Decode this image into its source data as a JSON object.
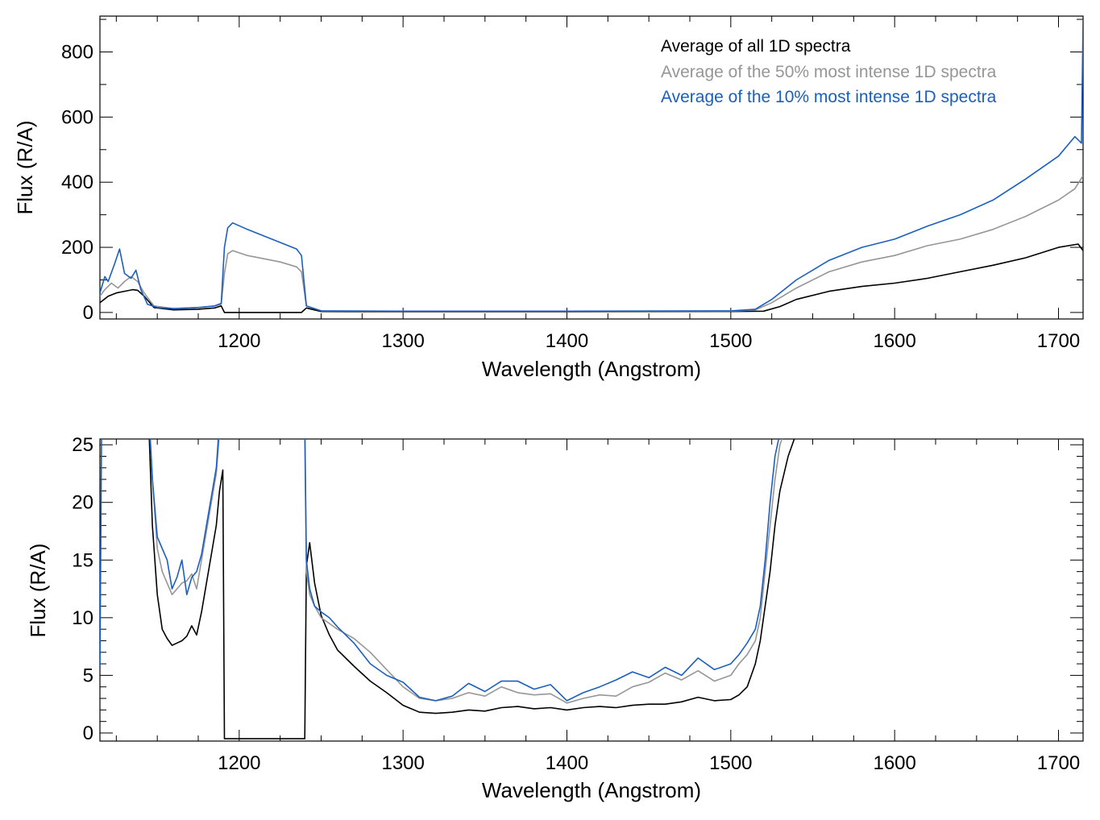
{
  "colors": {
    "all": "#000000",
    "top50": "#969696",
    "top10": "#1a5fbf"
  },
  "legend": [
    {
      "key": "all",
      "label": "Average of all 1D spectra"
    },
    {
      "key": "top50",
      "label": "Average of the 50% most intense 1D spectra"
    },
    {
      "key": "top10",
      "label": "Average of the 10% most intense 1D spectra"
    }
  ],
  "chart_data": [
    {
      "type": "line",
      "xlabel": "Wavelength (Angstrom)",
      "ylabel": "Flux (R/A)",
      "xlim": [
        1115,
        1715
      ],
      "ylim": [
        -20,
        910
      ],
      "xticks": [
        1200,
        1300,
        1400,
        1500,
        1600,
        1700
      ],
      "yticks": [
        0,
        200,
        400,
        600,
        800
      ],
      "legend_position": "top-right",
      "series": [
        {
          "key": "all",
          "name": "Average of all 1D spectra",
          "x": [
            1115,
            1120,
            1125,
            1130,
            1135,
            1138,
            1142,
            1148,
            1160,
            1175,
            1185,
            1189,
            1191,
            1196,
            1210,
            1225,
            1238,
            1241,
            1250,
            1300,
            1400,
            1500,
            1520,
            1530,
            1540,
            1560,
            1580,
            1600,
            1620,
            1640,
            1660,
            1680,
            1700,
            1712,
            1715
          ],
          "y": [
            30,
            50,
            60,
            65,
            70,
            68,
            50,
            15,
            8,
            10,
            14,
            20,
            0,
            0,
            0,
            0,
            0,
            14,
            3,
            2,
            2,
            3,
            4,
            18,
            40,
            65,
            80,
            90,
            105,
            125,
            145,
            168,
            200,
            210,
            190
          ]
        },
        {
          "key": "top50",
          "name": "Average of the 50% most intense 1D spectra",
          "x": [
            1115,
            1118,
            1122,
            1126,
            1130,
            1134,
            1138,
            1142,
            1148,
            1160,
            1175,
            1185,
            1189,
            1191,
            1193,
            1196,
            1205,
            1215,
            1225,
            1235,
            1238,
            1241,
            1250,
            1300,
            1400,
            1500,
            1515,
            1525,
            1540,
            1560,
            1580,
            1600,
            1620,
            1640,
            1660,
            1680,
            1700,
            1710,
            1715
          ],
          "y": [
            50,
            70,
            90,
            75,
            95,
            110,
            95,
            60,
            20,
            12,
            15,
            20,
            25,
            120,
            180,
            190,
            175,
            165,
            155,
            140,
            125,
            20,
            5,
            3,
            3,
            4,
            8,
            30,
            75,
            125,
            155,
            175,
            205,
            225,
            255,
            295,
            345,
            380,
            420
          ]
        },
        {
          "key": "top10",
          "name": "Average of the 10% most intense 1D spectra",
          "x": [
            1115,
            1118,
            1120,
            1124,
            1127,
            1130,
            1134,
            1137,
            1140,
            1144,
            1150,
            1160,
            1175,
            1185,
            1189,
            1191,
            1193,
            1196,
            1205,
            1215,
            1225,
            1235,
            1238,
            1241,
            1250,
            1300,
            1400,
            1500,
            1515,
            1525,
            1540,
            1560,
            1580,
            1600,
            1620,
            1640,
            1660,
            1680,
            1700,
            1710,
            1714,
            1715
          ],
          "y": [
            60,
            110,
            95,
            150,
            195,
            120,
            105,
            130,
            70,
            25,
            15,
            12,
            15,
            20,
            28,
            200,
            260,
            275,
            255,
            235,
            215,
            195,
            175,
            20,
            5,
            4,
            4,
            5,
            10,
            40,
            100,
            160,
            200,
            225,
            265,
            300,
            345,
            410,
            480,
            540,
            520,
            900
          ]
        }
      ]
    },
    {
      "type": "line",
      "xlabel": "Wavelength (Angstrom)",
      "ylabel": "Flux (R/A)",
      "xlim": [
        1115,
        1715
      ],
      "ylim": [
        -0.7,
        25.5
      ],
      "xticks": [
        1200,
        1300,
        1400,
        1500,
        1600,
        1700
      ],
      "yticks": [
        0,
        5,
        10,
        15,
        20,
        25
      ],
      "series": [
        {
          "key": "all",
          "name": "Average of all 1D spectra",
          "x": [
            1144,
            1147,
            1150,
            1153,
            1156,
            1159,
            1162,
            1165,
            1168,
            1171,
            1174,
            1177,
            1180,
            1183,
            1186,
            1188,
            1190,
            1191,
            1240,
            1241,
            1243,
            1246,
            1250,
            1255,
            1260,
            1270,
            1280,
            1290,
            1300,
            1310,
            1320,
            1330,
            1340,
            1350,
            1360,
            1370,
            1380,
            1390,
            1400,
            1410,
            1420,
            1430,
            1440,
            1450,
            1460,
            1470,
            1480,
            1490,
            1500,
            1505,
            1510,
            1515,
            1518,
            1521,
            1524,
            1527,
            1530,
            1535,
            1540
          ],
          "y": [
            30,
            18,
            12,
            9,
            8.2,
            7.6,
            7.8,
            8,
            8.4,
            9.3,
            8.5,
            10.5,
            13,
            15.5,
            18,
            21,
            22.8,
            -0.5,
            -0.5,
            14.5,
            16.5,
            13,
            10.2,
            8.5,
            7.2,
            5.8,
            4.5,
            3.5,
            2.4,
            1.8,
            1.7,
            1.8,
            2,
            1.9,
            2.2,
            2.3,
            2.1,
            2.2,
            2,
            2.2,
            2.3,
            2.2,
            2.4,
            2.5,
            2.5,
            2.7,
            3.1,
            2.8,
            2.9,
            3.3,
            4,
            6,
            8,
            11,
            14,
            18,
            21,
            24,
            26
          ]
        },
        {
          "key": "top50",
          "name": "Average of the 50% most intense 1D spectra",
          "x": [
            1144,
            1147,
            1150,
            1153,
            1156,
            1159,
            1162,
            1165,
            1168,
            1171,
            1174,
            1177,
            1180,
            1183,
            1186,
            1188,
            1240,
            1241,
            1243,
            1246,
            1250,
            1255,
            1260,
            1270,
            1280,
            1290,
            1300,
            1310,
            1320,
            1330,
            1340,
            1350,
            1360,
            1370,
            1380,
            1390,
            1400,
            1410,
            1420,
            1430,
            1440,
            1450,
            1460,
            1470,
            1480,
            1490,
            1500,
            1505,
            1510,
            1515,
            1518,
            1521,
            1524,
            1527,
            1530,
            1535
          ],
          "y": [
            30,
            22,
            16,
            14,
            13,
            12,
            12.5,
            13,
            13.2,
            13.8,
            12.5,
            15,
            17.5,
            20,
            22.5,
            26,
            26,
            14,
            12,
            11,
            10,
            9.5,
            9,
            8.2,
            7,
            5.5,
            4,
            3,
            2.8,
            3,
            3.5,
            3.2,
            4,
            3.5,
            3.3,
            3.4,
            2.6,
            3,
            3.3,
            3.2,
            4,
            4.4,
            5.2,
            4.6,
            5.4,
            4.5,
            5,
            6,
            6.8,
            8,
            10,
            14,
            18,
            22,
            25,
            27
          ]
        },
        {
          "key": "top10",
          "name": "Average of the 10% most intense 1D spectra",
          "x": [
            1115,
            1116,
            1144,
            1147,
            1150,
            1153,
            1156,
            1159,
            1162,
            1165,
            1168,
            1171,
            1174,
            1177,
            1180,
            1183,
            1186,
            1188,
            1240,
            1241,
            1243,
            1246,
            1250,
            1255,
            1260,
            1270,
            1280,
            1290,
            1300,
            1310,
            1320,
            1330,
            1340,
            1350,
            1360,
            1370,
            1380,
            1390,
            1400,
            1410,
            1420,
            1430,
            1440,
            1450,
            1460,
            1470,
            1480,
            1490,
            1500,
            1505,
            1510,
            1515,
            1518,
            1521,
            1524,
            1527,
            1530,
            1535
          ],
          "y": [
            5.8,
            26,
            30,
            22,
            17,
            16,
            15,
            12.5,
            13.5,
            15,
            12,
            13.5,
            14,
            15.5,
            18,
            20.5,
            23,
            27,
            27,
            15,
            12.5,
            11,
            10.5,
            10,
            9.2,
            7.8,
            6,
            5,
            4.4,
            3.1,
            2.8,
            3.2,
            4.3,
            3.6,
            4.5,
            4.5,
            3.8,
            4.2,
            2.8,
            3.5,
            4,
            4.6,
            5.3,
            4.8,
            5.7,
            5,
            6.5,
            5.5,
            6,
            6.8,
            7.8,
            9,
            11,
            15,
            20,
            24,
            26,
            28
          ]
        }
      ]
    }
  ]
}
